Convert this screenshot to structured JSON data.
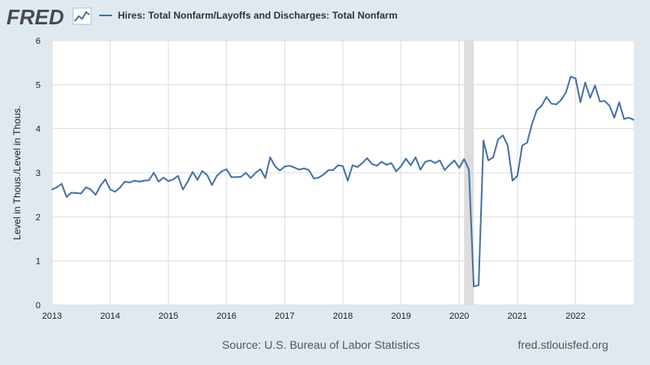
{
  "brand": {
    "logo_text": "FRED",
    "logo_icon": "line-chart-icon",
    "colors": {
      "background": "#e1e9f0",
      "plot_background": "#ffffff",
      "series": "#4572a7",
      "recession": "#dddddd",
      "gridline": "#dddddd"
    }
  },
  "footer": {
    "source": "Source: U.S. Bureau of Labor Statistics",
    "site": "fred.stlouisfed.org"
  },
  "chart_data": {
    "type": "line",
    "title": "",
    "xlabel": "",
    "ylabel": "Level in Thous./Level in Thous.",
    "x_ticks": [
      "2013",
      "2014",
      "2015",
      "2016",
      "2017",
      "2018",
      "2019",
      "2020",
      "2021",
      "2022"
    ],
    "y_ticks": [
      "0",
      "1",
      "2",
      "3",
      "4",
      "5",
      "6"
    ],
    "xlim": [
      2013.0,
      2023.0
    ],
    "ylim": [
      0,
      6
    ],
    "grid": true,
    "legend": "top-left",
    "recession_shading": [
      [
        2020.0833,
        2020.25
      ]
    ],
    "series": [
      {
        "name": "Hires: Total Nonfarm/Layoffs and Discharges: Total Nonfarm",
        "x_start": "2013-01",
        "frequency": "monthly",
        "values": [
          2.62,
          2.67,
          2.75,
          2.45,
          2.55,
          2.54,
          2.53,
          2.67,
          2.62,
          2.5,
          2.71,
          2.85,
          2.62,
          2.57,
          2.66,
          2.8,
          2.78,
          2.82,
          2.8,
          2.82,
          2.83,
          3.0,
          2.8,
          2.89,
          2.81,
          2.85,
          2.93,
          2.62,
          2.8,
          3.02,
          2.84,
          3.04,
          2.95,
          2.72,
          2.93,
          3.03,
          3.08,
          2.9,
          2.9,
          2.91,
          3.0,
          2.88,
          3.0,
          3.08,
          2.88,
          3.35,
          3.15,
          3.05,
          3.14,
          3.16,
          3.12,
          3.07,
          3.1,
          3.06,
          2.87,
          2.89,
          2.96,
          3.06,
          3.06,
          3.17,
          3.15,
          2.82,
          3.17,
          3.13,
          3.22,
          3.33,
          3.2,
          3.16,
          3.25,
          3.18,
          3.22,
          3.03,
          3.15,
          3.32,
          3.17,
          3.35,
          3.07,
          3.25,
          3.28,
          3.22,
          3.28,
          3.06,
          3.18,
          3.28,
          3.11,
          3.31,
          3.07,
          0.42,
          0.45,
          3.73,
          3.28,
          3.35,
          3.75,
          3.85,
          3.62,
          2.82,
          2.93,
          3.62,
          3.68,
          4.1,
          4.42,
          4.52,
          4.72,
          4.57,
          4.55,
          4.65,
          4.82,
          5.18,
          5.14,
          4.6,
          5.05,
          4.7,
          4.98,
          4.62,
          4.63,
          4.52,
          4.25,
          4.6,
          4.22,
          4.25,
          4.2
        ]
      }
    ]
  }
}
